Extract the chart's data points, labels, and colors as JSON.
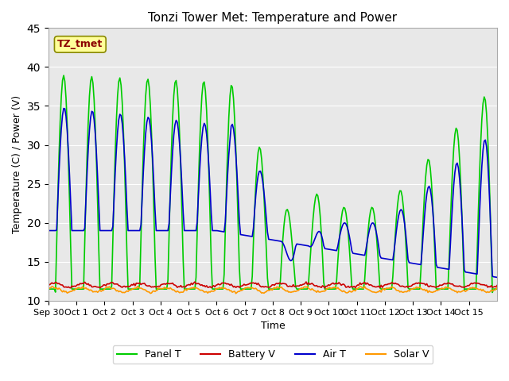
{
  "title": "Tonzi Tower Met: Temperature and Power",
  "xlabel": "Time",
  "ylabel": "Temperature (C) / Power (V)",
  "ylim": [
    10,
    45
  ],
  "yticks": [
    10,
    15,
    20,
    25,
    30,
    35,
    40,
    45
  ],
  "x_labels": [
    "Sep 30",
    "Oct 1",
    "Oct 2",
    "Oct 3",
    "Oct 4",
    "Oct 5",
    "Oct 6",
    "Oct 7",
    "Oct 8",
    "Oct 9",
    "Oct 10",
    "Oct 11",
    "Oct 12",
    "Oct 13",
    "Oct 14",
    "Oct 15"
  ],
  "n_days": 16,
  "colors": {
    "panel_t": "#00CC00",
    "battery_v": "#CC0000",
    "air_t": "#0000CC",
    "solar_v": "#FF9900"
  },
  "annotation_text": "TZ_tmet",
  "annotation_color": "#8B0000",
  "annotation_bg": "#FFFF99",
  "bg_color": "#E8E8E8",
  "legend_labels": [
    "Panel T",
    "Battery V",
    "Air T",
    "Solar V"
  ]
}
